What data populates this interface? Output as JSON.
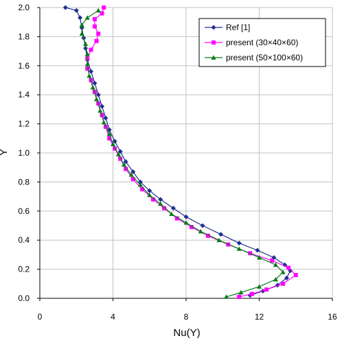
{
  "chart_data": {
    "type": "line",
    "title": "",
    "xlabel": "Nu(Y)",
    "ylabel": "Y",
    "xlim": [
      0,
      16
    ],
    "ylim": [
      0,
      2.0
    ],
    "xticks": [
      0,
      4,
      8,
      12,
      16
    ],
    "yticks": [
      0.0,
      0.2,
      0.4,
      0.6,
      0.8,
      1.0,
      1.2,
      1.4,
      1.6,
      1.8,
      2.0
    ],
    "grid": true,
    "legend_position": "top-right",
    "series": [
      {
        "name": "Ref [1]",
        "color": "#1f2f8f",
        "marker": "diamond",
        "points": [
          [
            11.5,
            0.02
          ],
          [
            12.2,
            0.05
          ],
          [
            13.0,
            0.09
          ],
          [
            13.5,
            0.14
          ],
          [
            13.7,
            0.19
          ],
          [
            13.4,
            0.23
          ],
          [
            12.8,
            0.28
          ],
          [
            11.9,
            0.33
          ],
          [
            10.9,
            0.38
          ],
          [
            9.9,
            0.44
          ],
          [
            8.9,
            0.5
          ],
          [
            8.0,
            0.56
          ],
          [
            7.3,
            0.62
          ],
          [
            6.6,
            0.68
          ],
          [
            6.0,
            0.74
          ],
          [
            5.5,
            0.8
          ],
          [
            5.1,
            0.87
          ],
          [
            4.7,
            0.94
          ],
          [
            4.4,
            1.01
          ],
          [
            4.1,
            1.08
          ],
          [
            3.8,
            1.16
          ],
          [
            3.6,
            1.24
          ],
          [
            3.4,
            1.32
          ],
          [
            3.2,
            1.4
          ],
          [
            3.0,
            1.48
          ],
          [
            2.8,
            1.56
          ],
          [
            2.6,
            1.64
          ],
          [
            2.5,
            1.72
          ],
          [
            2.4,
            1.79
          ],
          [
            2.3,
            1.86
          ],
          [
            2.2,
            1.93
          ],
          [
            2.0,
            1.98
          ],
          [
            1.4,
            2.0
          ]
        ]
      },
      {
        "name": "present (30×40×60)",
        "color": "#ff00ff",
        "marker": "square",
        "points": [
          [
            10.9,
            0.01
          ],
          [
            11.6,
            0.03
          ],
          [
            12.4,
            0.06
          ],
          [
            13.3,
            0.1
          ],
          [
            14.0,
            0.16
          ],
          [
            13.6,
            0.21
          ],
          [
            12.7,
            0.26
          ],
          [
            11.5,
            0.31
          ],
          [
            10.3,
            0.37
          ],
          [
            9.2,
            0.43
          ],
          [
            8.3,
            0.49
          ],
          [
            7.5,
            0.55
          ],
          [
            6.8,
            0.62
          ],
          [
            6.2,
            0.68
          ],
          [
            5.6,
            0.75
          ],
          [
            5.1,
            0.82
          ],
          [
            4.7,
            0.89
          ],
          [
            4.4,
            0.96
          ],
          [
            4.1,
            1.03
          ],
          [
            3.8,
            1.1
          ],
          [
            3.6,
            1.18
          ],
          [
            3.4,
            1.26
          ],
          [
            3.2,
            1.34
          ],
          [
            3.0,
            1.42
          ],
          [
            2.8,
            1.5
          ],
          [
            2.6,
            1.58
          ],
          [
            2.6,
            1.65
          ],
          [
            2.8,
            1.71
          ],
          [
            3.1,
            1.77
          ],
          [
            3.2,
            1.82
          ],
          [
            3.0,
            1.87
          ],
          [
            3.0,
            1.92
          ],
          [
            3.4,
            1.96
          ],
          [
            3.5,
            2.0
          ]
        ]
      },
      {
        "name": "present (50×100×60)",
        "color": "#0a7a1a",
        "marker": "triangle",
        "points": [
          [
            10.2,
            0.01
          ],
          [
            11.0,
            0.04
          ],
          [
            12.0,
            0.08
          ],
          [
            12.9,
            0.13
          ],
          [
            13.3,
            0.18
          ],
          [
            12.9,
            0.23
          ],
          [
            12.0,
            0.28
          ],
          [
            10.9,
            0.34
          ],
          [
            9.8,
            0.4
          ],
          [
            8.8,
            0.46
          ],
          [
            8.0,
            0.52
          ],
          [
            7.2,
            0.58
          ],
          [
            6.6,
            0.65
          ],
          [
            6.0,
            0.71
          ],
          [
            5.5,
            0.78
          ],
          [
            5.0,
            0.85
          ],
          [
            4.6,
            0.92
          ],
          [
            4.3,
            0.99
          ],
          [
            4.0,
            1.06
          ],
          [
            3.8,
            1.13
          ],
          [
            3.5,
            1.21
          ],
          [
            3.3,
            1.29
          ],
          [
            3.1,
            1.37
          ],
          [
            2.9,
            1.45
          ],
          [
            2.7,
            1.53
          ],
          [
            2.6,
            1.61
          ],
          [
            2.6,
            1.68
          ],
          [
            2.5,
            1.75
          ],
          [
            2.3,
            1.82
          ],
          [
            2.3,
            1.88
          ],
          [
            2.6,
            1.93
          ],
          [
            3.2,
            1.98
          ]
        ]
      }
    ]
  }
}
